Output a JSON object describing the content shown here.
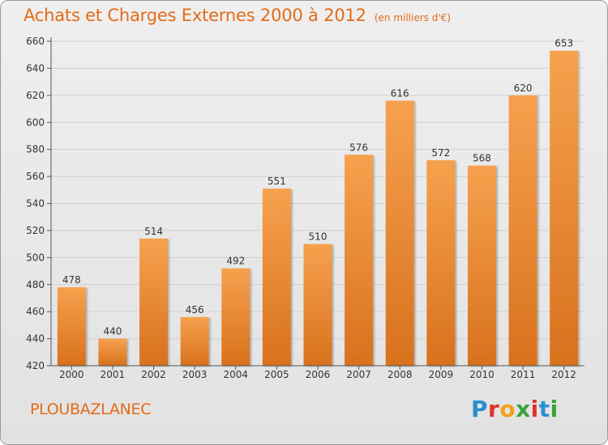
{
  "title": "Achats et Charges Externes 2000 à 2012",
  "unit": "(en milliers d'€)",
  "commune": "PLOUBAZLANEC",
  "logo": {
    "letters": [
      "P",
      "r",
      "o",
      "x",
      "i",
      "t",
      "i"
    ],
    "colors": [
      "#2a8fd0",
      "#e0322a",
      "#f0a11a",
      "#3aa33a",
      "#e0322a",
      "#2a8fd0",
      "#3aa33a"
    ]
  },
  "colors": {
    "bar_light": "#f6a14e",
    "bar_dark": "#d8711d",
    "title": "#e46b17"
  },
  "chart_data": {
    "type": "bar",
    "title": "Achats et Charges Externes 2000 à 2012",
    "subtitle": "(en milliers d'€)",
    "categories": [
      "2000",
      "2001",
      "2002",
      "2003",
      "2004",
      "2005",
      "2006",
      "2007",
      "2008",
      "2009",
      "2010",
      "2011",
      "2012"
    ],
    "values": [
      478,
      440,
      514,
      456,
      492,
      551,
      510,
      576,
      616,
      572,
      568,
      620,
      653
    ],
    "ylim": [
      420,
      660
    ],
    "yticks": [
      420,
      440,
      460,
      480,
      500,
      520,
      540,
      560,
      580,
      600,
      620,
      640,
      660
    ],
    "grid": true,
    "xlabel": "",
    "ylabel": ""
  }
}
